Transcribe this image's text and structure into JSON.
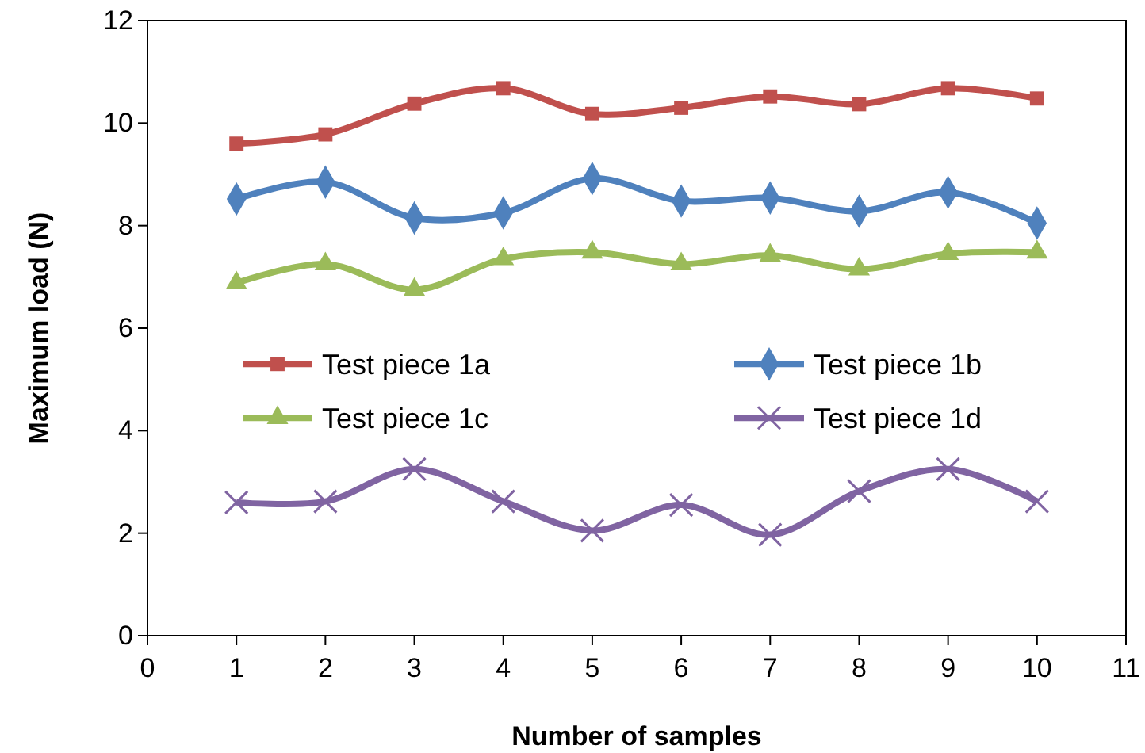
{
  "chart_data": {
    "type": "line",
    "xlabel": "Number of samples",
    "ylabel": "Maximum load (N)",
    "x": [
      1,
      2,
      3,
      4,
      5,
      6,
      7,
      8,
      9,
      10
    ],
    "xlim": [
      0,
      11
    ],
    "xticks": [
      0,
      1,
      2,
      3,
      4,
      5,
      6,
      7,
      8,
      9,
      10,
      11
    ],
    "ylim": [
      0,
      12
    ],
    "yticks": [
      0,
      2,
      4,
      6,
      8,
      10,
      12
    ],
    "grid": false,
    "legend": "center left",
    "series": [
      {
        "name": "Test piece 1a",
        "color": "#c0504d",
        "marker": "square",
        "values": [
          9.6,
          9.78,
          10.38,
          10.68,
          10.18,
          10.3,
          10.52,
          10.37,
          10.68,
          10.48
        ]
      },
      {
        "name": "Test piece 1b",
        "color": "#4f81bd",
        "marker": "diamond",
        "values": [
          8.52,
          8.85,
          8.15,
          8.25,
          8.92,
          8.48,
          8.54,
          8.28,
          8.65,
          8.05
        ]
      },
      {
        "name": "Test piece 1c",
        "color": "#9bbb59",
        "marker": "triangle",
        "values": [
          6.88,
          7.25,
          6.75,
          7.35,
          7.48,
          7.25,
          7.42,
          7.15,
          7.45,
          7.48
        ]
      },
      {
        "name": "Test piece 1d",
        "color": "#8064a2",
        "marker": "cross",
        "values": [
          2.6,
          2.62,
          3.25,
          2.62,
          2.05,
          2.55,
          1.97,
          2.82,
          3.25,
          2.62
        ]
      }
    ]
  }
}
